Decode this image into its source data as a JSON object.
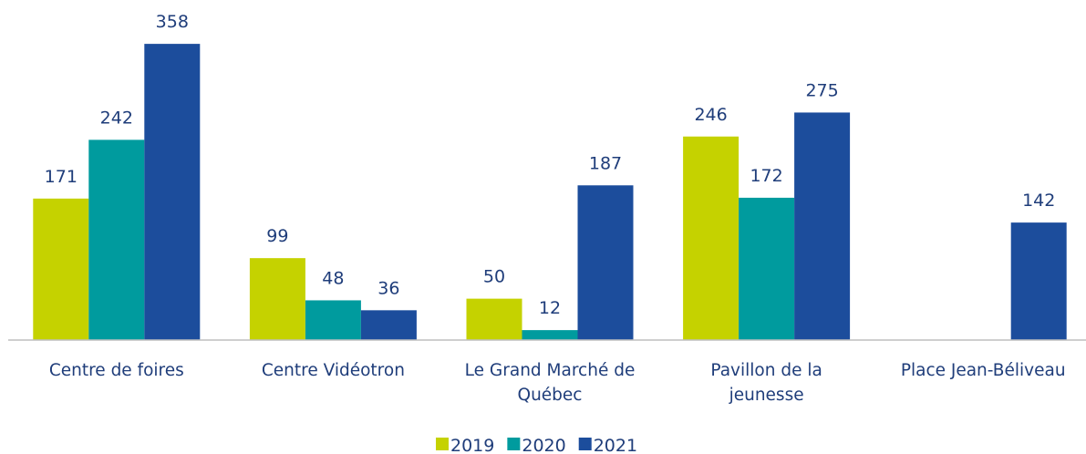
{
  "chart_data": {
    "type": "bar",
    "categories": [
      "Centre de foires",
      "Centre Vidéotron",
      "Le Grand Marché de Québec",
      "Pavillon de la jeunesse",
      "Place Jean-Béliveau"
    ],
    "series": [
      {
        "name": "2019",
        "color": "#c5d200",
        "values": [
          171,
          99,
          50,
          246,
          null
        ]
      },
      {
        "name": "2020",
        "color": "#009b9e",
        "values": [
          242,
          48,
          12,
          172,
          null
        ]
      },
      {
        "name": "2021",
        "color": "#1c4d9c",
        "values": [
          358,
          36,
          187,
          275,
          142
        ]
      }
    ],
    "ylim": [
      0,
      400
    ]
  }
}
